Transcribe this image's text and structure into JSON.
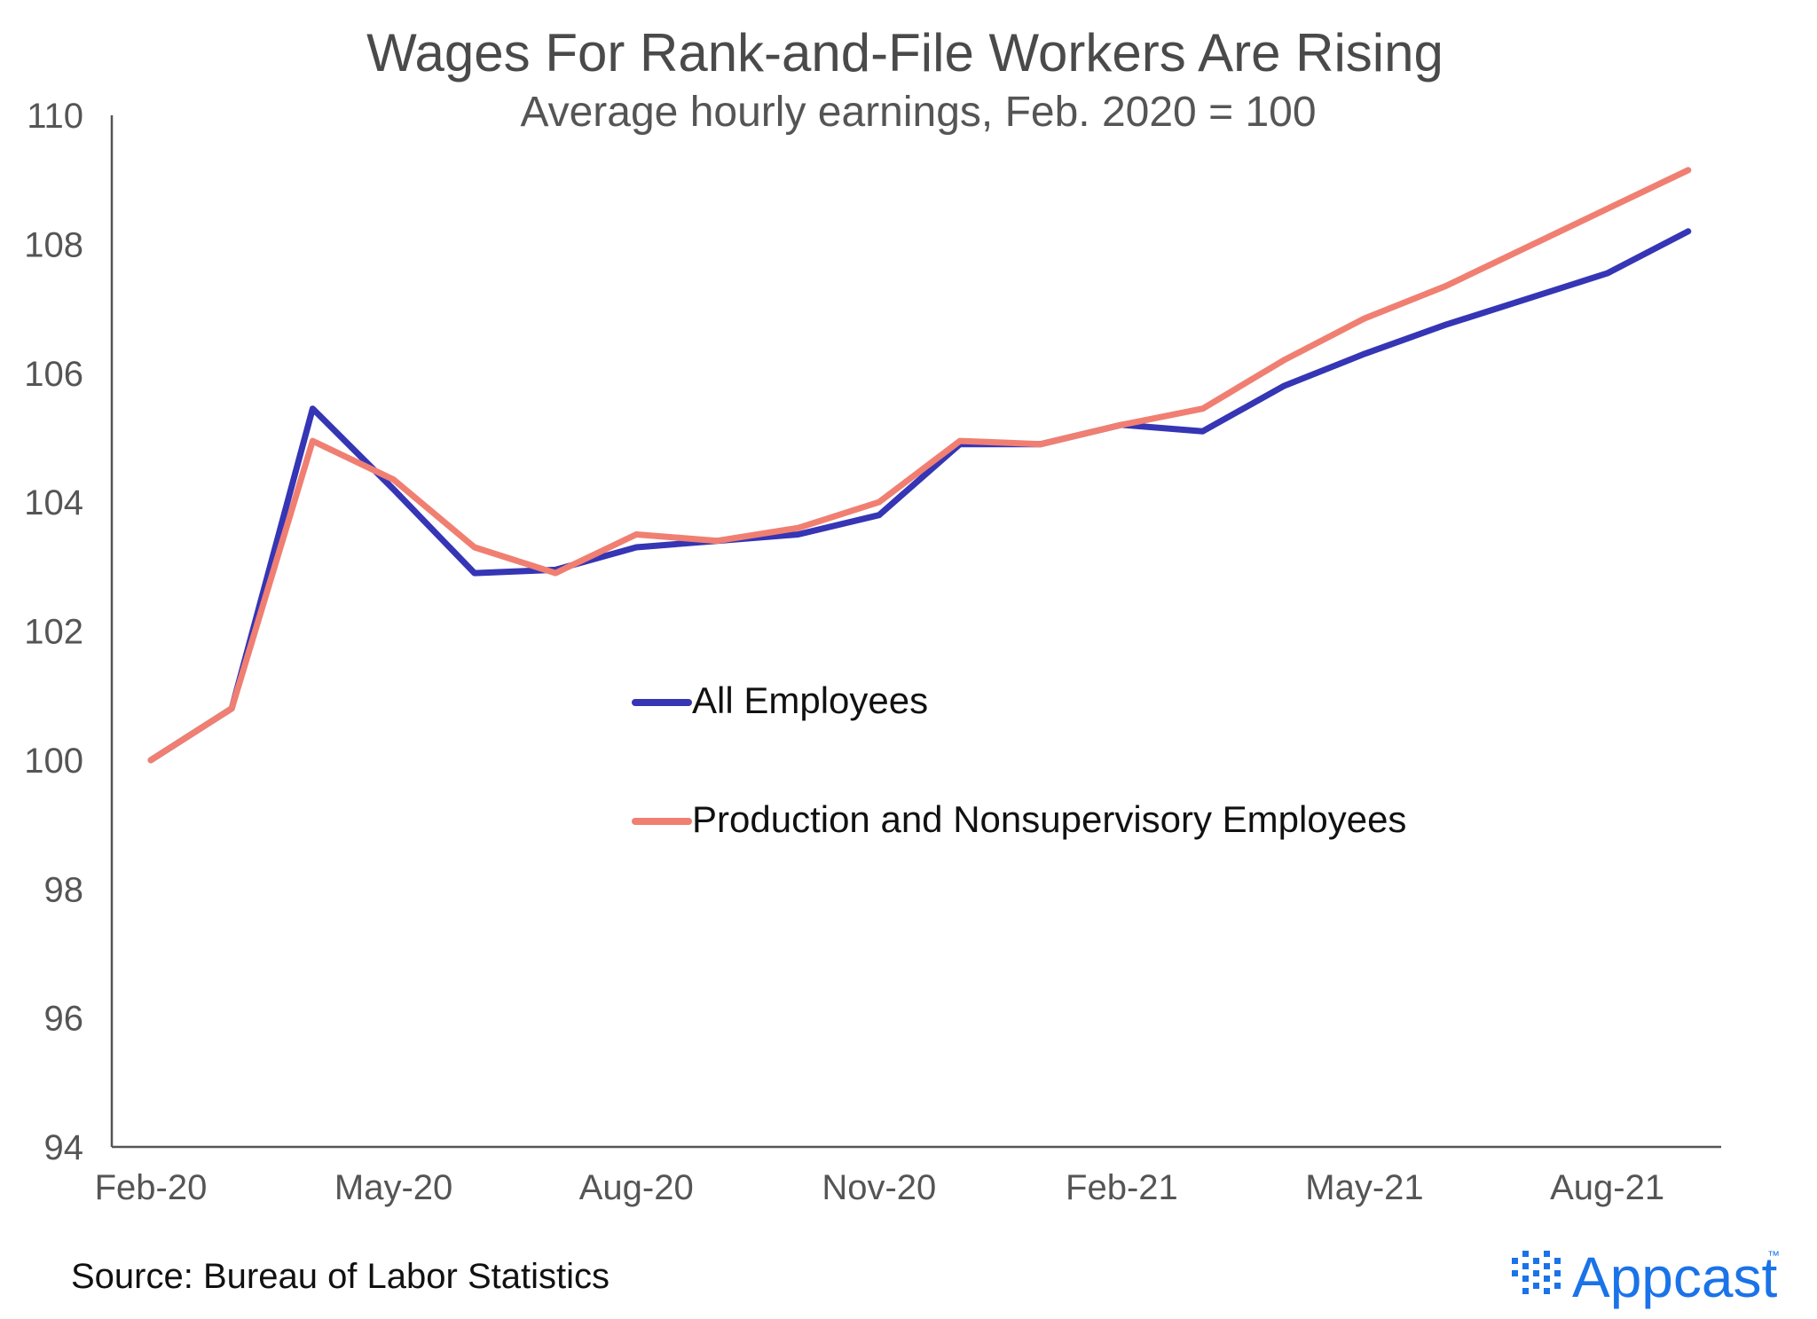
{
  "chart_data": {
    "type": "line",
    "title": "Wages For Rank-and-File Workers Are Rising",
    "subtitle": "Average hourly earnings, Feb. 2020 = 100",
    "xlabel": "",
    "ylabel": "",
    "ylim": [
      94,
      110
    ],
    "yticks": [
      "110",
      "108",
      "106",
      "104",
      "102",
      "100",
      "98",
      "96",
      "94"
    ],
    "x": [
      "Feb-20",
      "Mar-20",
      "Apr-20",
      "May-20",
      "Jun-20",
      "Jul-20",
      "Aug-20",
      "Sep-20",
      "Oct-20",
      "Nov-20",
      "Dec-20",
      "Jan-21",
      "Feb-21",
      "Mar-21",
      "Apr-21",
      "May-21",
      "Jun-21",
      "Jul-21",
      "Aug-21",
      "Sep-21"
    ],
    "xtick_labels": [
      "Feb-20",
      "May-20",
      "Aug-20",
      "Nov-20",
      "Feb-21",
      "May-21",
      "Aug-21"
    ],
    "xtick_indices": [
      0,
      3,
      6,
      9,
      12,
      15,
      18
    ],
    "series": [
      {
        "name": "All Employees",
        "color": "#3535b5",
        "values": [
          100.0,
          100.8,
          105.45,
          104.2,
          102.9,
          102.95,
          103.3,
          103.4,
          103.5,
          103.8,
          104.9,
          104.9,
          105.2,
          105.1,
          105.8,
          106.3,
          106.75,
          107.15,
          107.55,
          108.2
        ]
      },
      {
        "name": "Production and Nonsupervisory Employees",
        "color": "#f07f72",
        "values": [
          100.0,
          100.8,
          104.95,
          104.35,
          103.3,
          102.9,
          103.5,
          103.4,
          103.6,
          104.0,
          104.95,
          104.9,
          105.2,
          105.45,
          106.2,
          106.85,
          107.35,
          107.95,
          108.55,
          109.15
        ]
      }
    ],
    "grid": false,
    "legend_position": "center"
  },
  "source": "Source: Bureau of Labor Statistics",
  "brand": {
    "name": "Appcast",
    "trademark": "™",
    "color": "#1a73e8"
  }
}
